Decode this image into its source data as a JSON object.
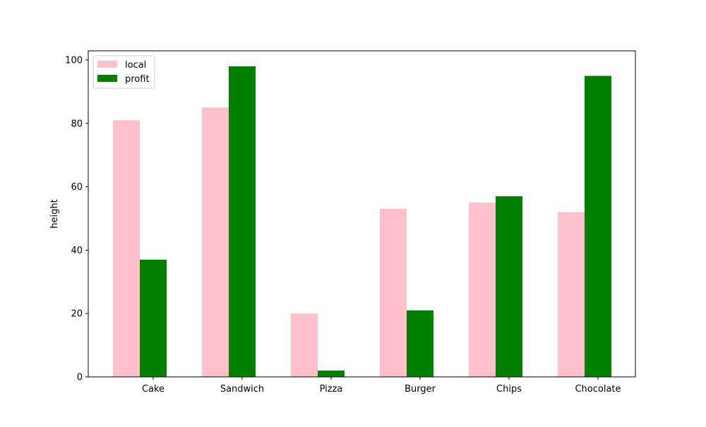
{
  "chart_data": {
    "type": "bar",
    "title": "",
    "xlabel": "",
    "ylabel": "height",
    "categories": [
      "Cake",
      "Sandwich",
      "Pizza",
      "Burger",
      "Chips",
      "Chocolate"
    ],
    "series": [
      {
        "name": "local",
        "color": "#ffc0cb",
        "values": [
          81,
          85,
          20,
          53,
          55,
          52
        ]
      },
      {
        "name": "profit",
        "color": "#008000",
        "values": [
          37,
          98,
          2,
          21,
          57,
          95
        ]
      }
    ],
    "ylim": [
      0,
      102.9
    ],
    "yticks": [
      0,
      20,
      40,
      60,
      80,
      100
    ],
    "grid": false,
    "legend": "top-left"
  }
}
